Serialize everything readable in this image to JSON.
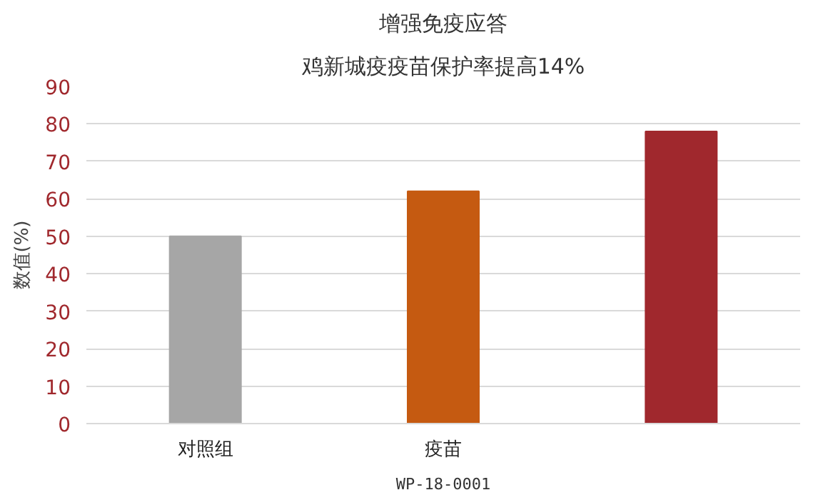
{
  "chart_data": {
    "type": "bar",
    "title": "增强免疫应答",
    "subtitle": "鸡新城疫疫苗保护率提高14%",
    "ylabel": "数值(%)",
    "categories": [
      "对照组",
      "疫苗",
      null
    ],
    "values": [
      50,
      62,
      78
    ],
    "colors": [
      "#a6a6a6",
      "#c55a11",
      "#a0282d"
    ],
    "ylim": [
      0,
      90
    ],
    "yticks": [
      0,
      10,
      20,
      30,
      40,
      50,
      60,
      70,
      80,
      90
    ],
    "grid": "y",
    "annotations": [
      "WP-18-0001"
    ]
  }
}
